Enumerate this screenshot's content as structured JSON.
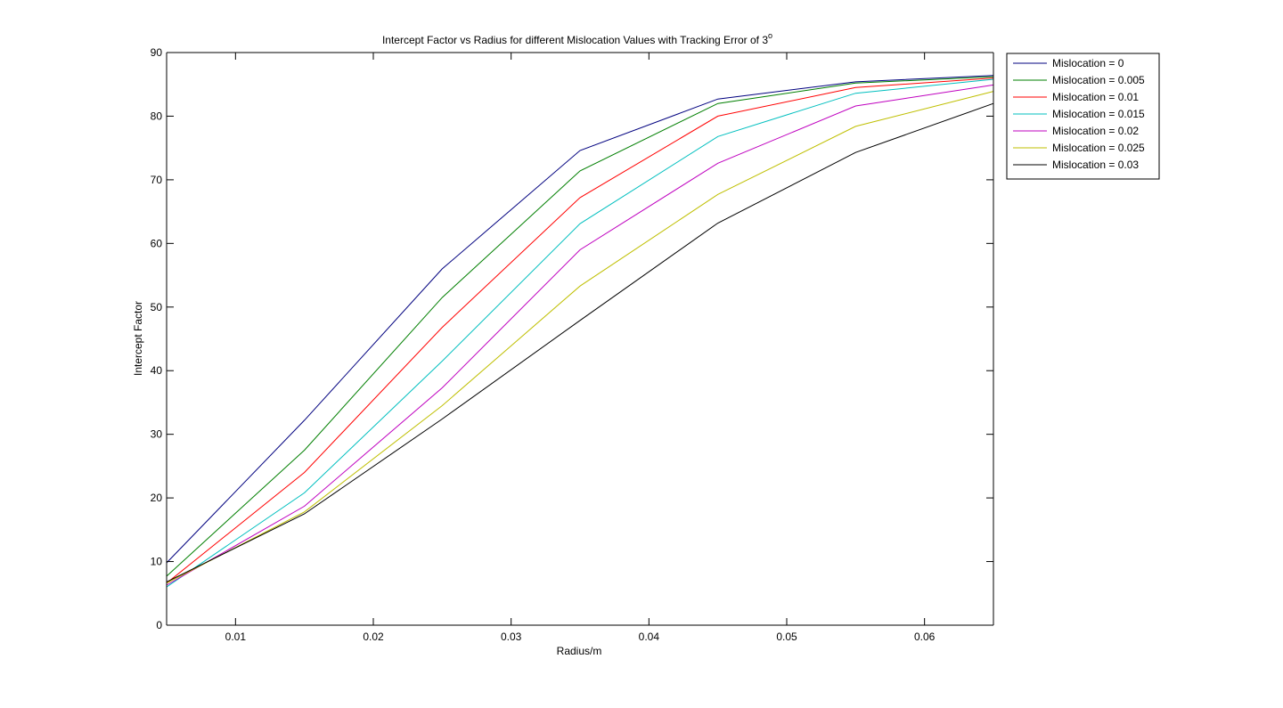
{
  "chart_data": {
    "type": "line",
    "title": "Intercept Factor vs Radius for different Mislocation Values with Tracking Error of 3",
    "title_superscript": "o",
    "xlabel": "Radius/m",
    "ylabel": "Intercept Factor",
    "xlim": [
      0.005,
      0.065
    ],
    "ylim": [
      0,
      90
    ],
    "xticks": [
      0.01,
      0.02,
      0.03,
      0.04,
      0.05,
      0.06
    ],
    "xtick_labels": [
      "0.01",
      "0.02",
      "0.03",
      "0.04",
      "0.05",
      "0.06"
    ],
    "yticks": [
      0,
      10,
      20,
      30,
      40,
      50,
      60,
      70,
      80,
      90
    ],
    "ytick_labels": [
      "0",
      "10",
      "20",
      "30",
      "40",
      "50",
      "60",
      "70",
      "80",
      "90"
    ],
    "grid": false,
    "legend_position": "top-right",
    "x": [
      0.005,
      0.015,
      0.025,
      0.035,
      0.045,
      0.055,
      0.065
    ],
    "series": [
      {
        "name": "Mislocation = 0",
        "color": "#00007f",
        "values": [
          9.8,
          32.2,
          56.0,
          74.6,
          82.7,
          85.4,
          86.4
        ]
      },
      {
        "name": "Mislocation = 0.005",
        "color": "#007f00",
        "values": [
          7.7,
          27.5,
          51.5,
          71.4,
          82.0,
          85.2,
          86.2
        ]
      },
      {
        "name": "Mislocation = 0.01",
        "color": "#ff0000",
        "values": [
          6.6,
          24.0,
          46.8,
          67.2,
          80.0,
          84.5,
          86.0
        ]
      },
      {
        "name": "Mislocation = 0.015",
        "color": "#00bfbf",
        "values": [
          6.0,
          20.8,
          41.5,
          63.1,
          76.8,
          83.6,
          85.8
        ]
      },
      {
        "name": "Mislocation = 0.02",
        "color": "#bf00bf",
        "values": [
          6.3,
          18.7,
          37.3,
          59.0,
          72.6,
          81.6,
          84.9
        ]
      },
      {
        "name": "Mislocation = 0.025",
        "color": "#bfbf00",
        "values": [
          6.6,
          17.8,
          34.5,
          53.3,
          67.7,
          78.4,
          83.9
        ]
      },
      {
        "name": "Mislocation = 0.03",
        "color": "#000000",
        "values": [
          6.8,
          17.5,
          32.4,
          47.9,
          63.2,
          74.3,
          82.0
        ]
      }
    ]
  }
}
